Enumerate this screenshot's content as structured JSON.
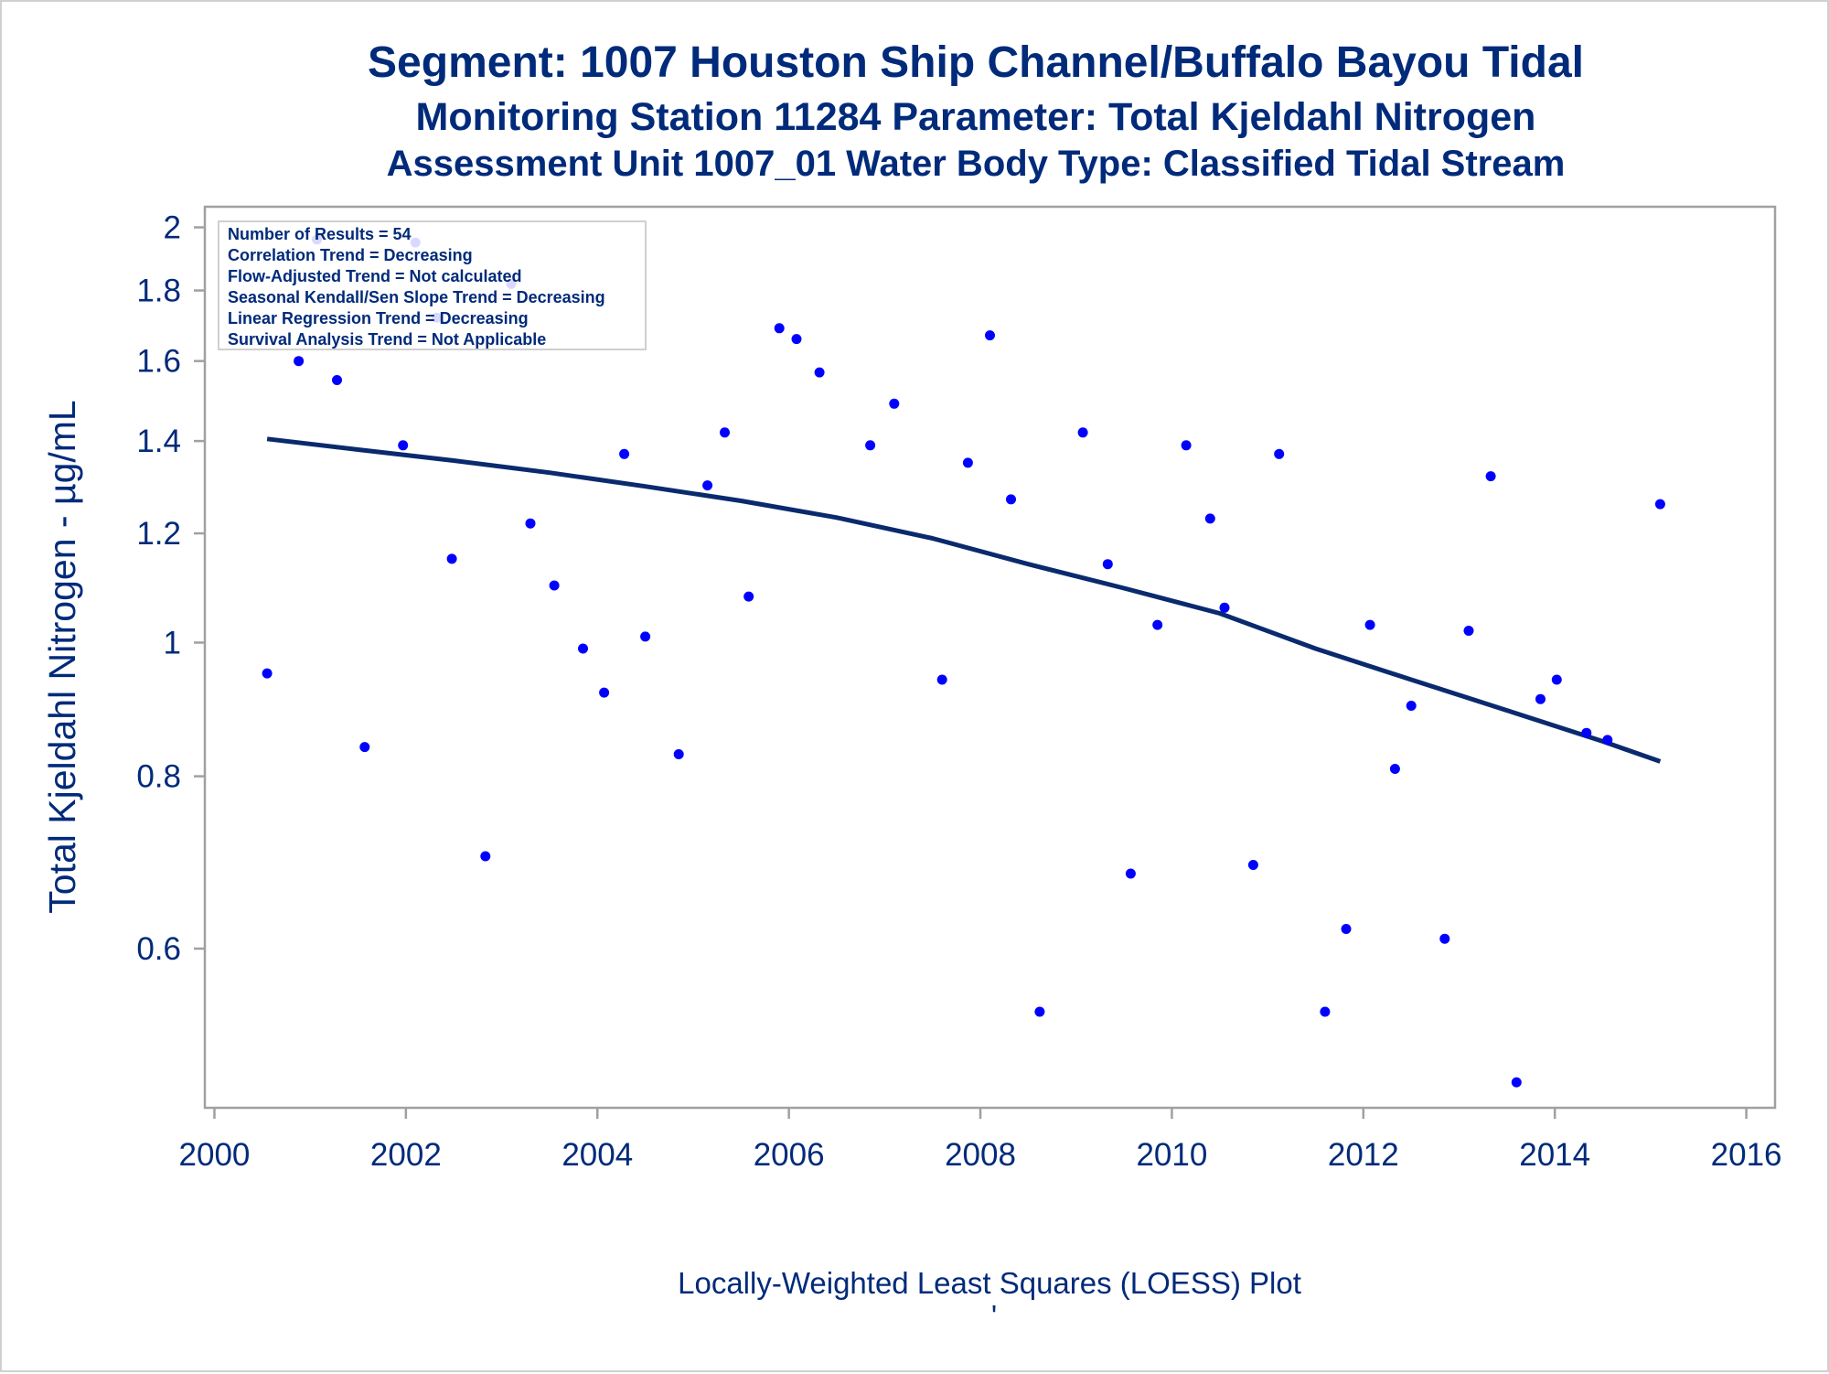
{
  "titles": {
    "line1": "Segment: 1007  Houston Ship Channel/Buffalo Bayou Tidal",
    "line2": "Monitoring Station 11284 Parameter: Total Kjeldahl Nitrogen",
    "line3": "Assessment Unit 1007_01   Water Body Type: Classified Tidal Stream"
  },
  "footnote": "Locally-Weighted Least Squares (LOESS) Plot",
  "footnote_mark": "'",
  "stats_box": [
    "Number of Results = 54",
    "Correlation Trend = Decreasing",
    "Flow-Adjusted Trend = Not calculated",
    "Seasonal Kendall/Sen Slope Trend = Decreasing",
    "Linear Regression Trend = Decreasing",
    "Survival Analysis Trend = Not Applicable"
  ],
  "colors": {
    "text": "#002a7a",
    "points": "#0000ff",
    "line": "#0a2a6e",
    "axis": "#a0a0a0"
  },
  "chart_data": {
    "type": "scatter",
    "ylabel": "Total Kjeldahl Nitrogen -  µg/mL",
    "xlabel": "",
    "x_scale": "linear",
    "y_scale": "log",
    "xlim": [
      1999.9,
      2016.3
    ],
    "ylim": [
      0.46,
      2.07
    ],
    "x_ticks": [
      2000,
      2002,
      2004,
      2006,
      2008,
      2010,
      2012,
      2014,
      2016
    ],
    "y_ticks": [
      0.6,
      0.8,
      1,
      1.2,
      1.4,
      1.6,
      1.8,
      2
    ],
    "grid": false,
    "series": [
      {
        "kind": "points",
        "x": [
          2000.55,
          2000.88,
          2001.07,
          2001.28,
          2001.57,
          2001.97,
          2002.1,
          2002.32,
          2002.48,
          2002.83,
          2003.1,
          2003.3,
          2003.55,
          2003.85,
          2004.07,
          2004.28,
          2004.5,
          2004.85,
          2005.15,
          2005.33,
          2005.58,
          2005.9,
          2006.08,
          2006.32,
          2006.85,
          2007.1,
          2007.6,
          2007.87,
          2008.1,
          2008.32,
          2008.62,
          2009.07,
          2009.33,
          2009.57,
          2009.85,
          2010.15,
          2010.4,
          2010.55,
          2010.85,
          2011.12,
          2011.6,
          2011.82,
          2012.07,
          2012.33,
          2012.5,
          2012.85,
          2013.1,
          2013.33,
          2013.6,
          2013.85,
          2014.02,
          2014.33,
          2014.55,
          2015.1
        ],
        "y": [
          0.95,
          1.6,
          1.96,
          1.55,
          0.84,
          1.39,
          1.95,
          1.72,
          1.15,
          0.7,
          1.82,
          1.22,
          1.1,
          0.99,
          0.92,
          1.37,
          1.01,
          0.83,
          1.3,
          1.42,
          1.08,
          1.69,
          1.66,
          1.57,
          1.39,
          1.49,
          0.94,
          1.35,
          1.67,
          1.27,
          0.54,
          1.42,
          1.14,
          0.68,
          1.03,
          1.39,
          1.23,
          1.06,
          0.69,
          1.37,
          0.54,
          0.62,
          1.03,
          0.81,
          0.9,
          0.61,
          1.02,
          1.32,
          0.48,
          0.91,
          0.94,
          0.86,
          0.85,
          1.26
        ]
      },
      {
        "kind": "loess",
        "x": [
          2000.55,
          2001.5,
          2002.5,
          2003.5,
          2004.5,
          2005.5,
          2006.5,
          2007.5,
          2008.5,
          2009.5,
          2010.5,
          2011.5,
          2012.5,
          2013.5,
          2014.5,
          2015.1
        ],
        "y": [
          1.405,
          1.38,
          1.355,
          1.328,
          1.298,
          1.267,
          1.232,
          1.19,
          1.14,
          1.095,
          1.05,
          0.99,
          0.94,
          0.893,
          0.848,
          0.82
        ]
      }
    ]
  }
}
